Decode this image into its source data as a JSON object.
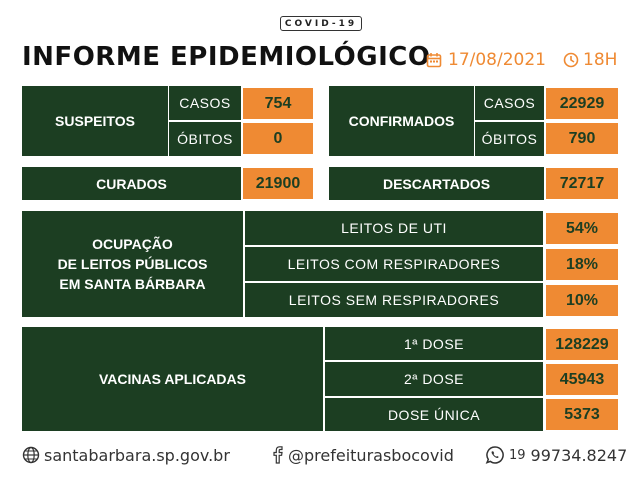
{
  "badge": "COVID-19",
  "title": "INFORME EPIDEMIOLÓGICO",
  "date": "17/08/2021",
  "hour": "18H",
  "suspeitos": {
    "label": "SUSPEITOS",
    "casos_label": "CASOS",
    "casos": "754",
    "obitos_label": "ÓBITOS",
    "obitos": "0"
  },
  "confirmados": {
    "label": "CONFIRMADOS",
    "casos_label": "CASOS",
    "casos": "22929",
    "obitos_label": "ÓBITOS",
    "obitos": "790"
  },
  "curados": {
    "label": "CURADOS",
    "value": "21900"
  },
  "descartados": {
    "label": "DESCARTADOS",
    "value": "72717"
  },
  "ocupacao": {
    "label_lines": [
      "OCUPAÇÃO",
      "DE LEITOS PÚBLICOS",
      "EM SANTA BÁRBARA"
    ],
    "rows": [
      {
        "label": "LEITOS DE UTI",
        "value": "54%"
      },
      {
        "label": "LEITOS COM RESPIRADORES",
        "value": "18%"
      },
      {
        "label": "LEITOS SEM RESPIRADORES",
        "value": "10%"
      }
    ]
  },
  "vacinas": {
    "label": "VACINAS APLICADAS",
    "rows": [
      {
        "label": "1ª DOSE",
        "value": "128229"
      },
      {
        "label": "2ª DOSE",
        "value": "45943"
      },
      {
        "label": "DOSE ÚNICA",
        "value": "5373"
      }
    ]
  },
  "footer": {
    "website": "santabarbara.sp.gov.br",
    "facebook": "@prefeiturasbocovid",
    "whatsapp_prefix": "19",
    "whatsapp": "99734.8247"
  },
  "colors": {
    "green": "#1c3e22",
    "orange": "#ef8a33"
  },
  "icons": [
    "calendar-icon",
    "clock-icon",
    "globe-icon",
    "facebook-icon",
    "whatsapp-icon"
  ]
}
